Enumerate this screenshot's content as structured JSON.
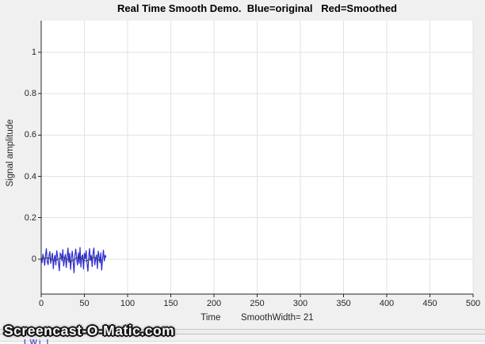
{
  "figure": {
    "background_color": "#f0f0f0",
    "watermark_text": "Screencast-O-Matic.com",
    "bottom_fragment_text": "LWi l"
  },
  "colors": {
    "axis": "#262626",
    "grid": "#e2e2e2",
    "plot_background": "#ffffff",
    "original_line": "#2a2ad4",
    "smoothed_line": "#3a3a3a"
  },
  "chart_data": {
    "type": "line",
    "title": "Real Time Smooth Demo.  Blue=original   Red=Smoothed",
    "xlabel": "Time        SmoothWidth= 21",
    "ylabel": "Signal amplitude",
    "xlim": [
      0,
      500
    ],
    "ylim": [
      -0.169,
      1.153
    ],
    "grid": true,
    "legend_position": "none",
    "xticks": {
      "values": [
        0,
        50,
        100,
        150,
        200,
        250,
        300,
        350,
        400,
        450,
        500
      ],
      "labels": [
        "0",
        "50",
        "100",
        "150",
        "200",
        "250",
        "300",
        "350",
        "400",
        "450",
        "500"
      ]
    },
    "yticks": {
      "values": [
        0,
        0.2,
        0.4,
        0.6,
        0.8,
        1
      ],
      "labels": [
        "0",
        "0.2",
        "0.4",
        "0.6",
        "0.8",
        "1"
      ]
    },
    "series": [
      {
        "name": "original",
        "color": "#2a2ad4",
        "x0": 0,
        "dx": 1,
        "y": [
          0.01,
          -0.018,
          0.025,
          0.004,
          -0.032,
          0.018,
          0.052,
          -0.012,
          -0.028,
          0.015,
          0.038,
          -0.022,
          0.008,
          0.03,
          -0.048,
          0.002,
          0.02,
          -0.03,
          0.042,
          0.012,
          -0.02,
          -0.058,
          0.028,
          0.022,
          -0.01,
          0.048,
          -0.035,
          0.0,
          0.024,
          -0.042,
          0.01,
          0.055,
          -0.018,
          0.03,
          -0.052,
          0.008,
          0.04,
          -0.012,
          -0.068,
          0.018,
          0.05,
          0.002,
          -0.03,
          0.032,
          -0.022,
          0.058,
          -0.04,
          0.012,
          0.022,
          -0.05,
          0.03,
          0.0,
          0.042,
          -0.018,
          -0.06,
          0.01,
          0.052,
          -0.008,
          0.02,
          -0.038,
          0.028,
          0.055,
          -0.03,
          0.002,
          0.022,
          -0.048,
          0.04,
          0.012,
          -0.02,
          0.032,
          -0.055,
          0.0,
          0.045,
          -0.01,
          0.02,
          0.008
        ]
      },
      {
        "name": "smoothed",
        "color": "#3a3a3a",
        "x0": 0,
        "dx": 1,
        "y": [
          0.0,
          0.001,
          0.002,
          0.003,
          0.004,
          0.005,
          0.006,
          0.006,
          0.005,
          0.004,
          0.002,
          0.0,
          -0.002,
          -0.004,
          -0.006,
          -0.007,
          -0.007,
          -0.006,
          -0.004,
          -0.002,
          0.0,
          0.002,
          0.004,
          0.006,
          0.008,
          0.009,
          0.009,
          0.008,
          0.006,
          0.003,
          0.0,
          -0.003,
          -0.006,
          -0.008,
          -0.009,
          -0.009,
          -0.008,
          -0.006,
          -0.003,
          0.0,
          0.003,
          0.006,
          0.008,
          0.009,
          0.009,
          0.008,
          0.006,
          0.003,
          0.0,
          -0.003,
          -0.006,
          -0.008,
          -0.009,
          -0.008,
          -0.006,
          -0.003,
          0.0,
          0.003,
          0.005,
          0.007,
          0.008,
          0.008,
          0.007,
          0.005,
          0.002,
          -0.001,
          -0.004,
          -0.006,
          -0.007,
          -0.007,
          -0.006
        ]
      }
    ]
  }
}
